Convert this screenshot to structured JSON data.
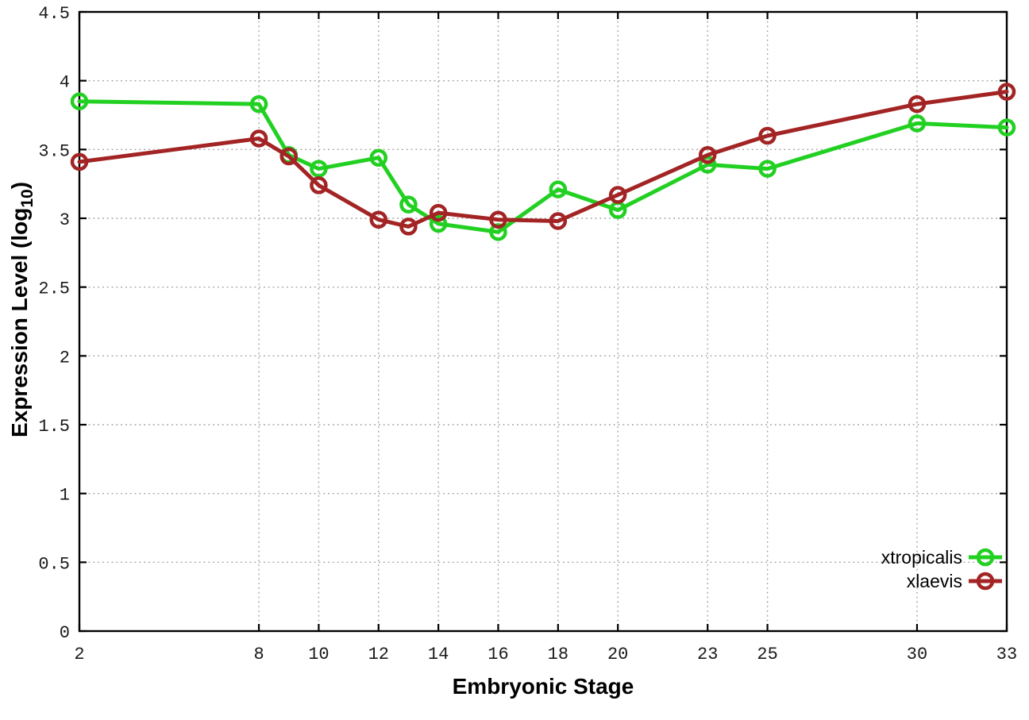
{
  "chart_data": {
    "type": "line",
    "title": "",
    "xlabel": "Embryonic Stage",
    "ylabel": {
      "text": "Expression Level (log",
      "subscript": "10",
      "suffix": ")"
    },
    "x": [
      2,
      8,
      9,
      10,
      12,
      13,
      14,
      16,
      18,
      20,
      23,
      25,
      30,
      33
    ],
    "series": [
      {
        "name": "xtropicalis",
        "color": "#22d022",
        "values": [
          3.85,
          3.83,
          3.46,
          3.36,
          3.44,
          3.1,
          2.96,
          2.9,
          3.21,
          3.06,
          3.39,
          3.36,
          3.69,
          3.66
        ]
      },
      {
        "name": "xlaevis",
        "color": "#a32424",
        "values": [
          3.41,
          3.58,
          3.45,
          3.24,
          2.99,
          2.94,
          3.04,
          2.99,
          2.98,
          3.17,
          3.46,
          3.6,
          3.83,
          3.92
        ]
      }
    ],
    "xlim": [
      2,
      33
    ],
    "ylim": [
      0,
      4.5
    ],
    "x_ticks": [
      2,
      8,
      10,
      12,
      14,
      16,
      18,
      20,
      23,
      25,
      30,
      33
    ],
    "x_tick_labels": [
      "2",
      "8",
      "10",
      "12",
      "14",
      "16",
      "18",
      "20",
      "23",
      "25",
      "30",
      "33"
    ],
    "y_ticks": [
      0,
      0.5,
      1,
      1.5,
      2,
      2.5,
      3,
      3.5,
      4,
      4.5
    ],
    "y_tick_labels": [
      "0",
      "0.5",
      "1",
      "1.5",
      "2",
      "2.5",
      "3",
      "3.5",
      "4",
      "4.5"
    ],
    "grid": true,
    "grid_style": "dotted",
    "grid_color": "#a0a0a0",
    "border_color": "#000000",
    "background": "#ffffff",
    "marker": "open-circle",
    "legend_position": "bottom-right"
  }
}
